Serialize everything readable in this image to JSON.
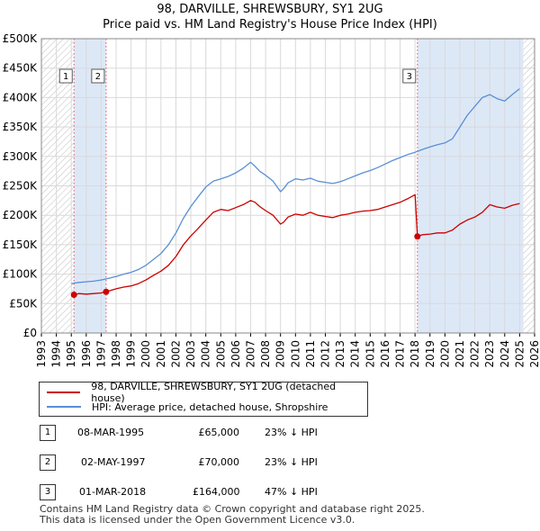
{
  "header": {
    "title": "98, DARVILLE, SHREWSBURY, SY1 2UG",
    "subtitle": "Price paid vs. HM Land Registry's House Price Index (HPI)"
  },
  "colors": {
    "property": "#cc0000",
    "hpi": "#5a8fd6",
    "shade": "#dde8f7",
    "grid": "#d9d9d9",
    "marker_line": "#dd5555"
  },
  "chart_data": {
    "type": "line",
    "title": "98, DARVILLE, SHREWSBURY, SY1 2UG",
    "subtitle": "Price paid vs. HM Land Registry's House Price Index (HPI)",
    "xlabel": "",
    "ylabel": "",
    "xlim": [
      1993,
      2026
    ],
    "ylim": [
      0,
      500000
    ],
    "y_ticks": [
      {
        "value": 0,
        "label": "£0"
      },
      {
        "value": 50000,
        "label": "£50K"
      },
      {
        "value": 100000,
        "label": "£100K"
      },
      {
        "value": 150000,
        "label": "£150K"
      },
      {
        "value": 200000,
        "label": "£200K"
      },
      {
        "value": 250000,
        "label": "£250K"
      },
      {
        "value": 300000,
        "label": "£300K"
      },
      {
        "value": 350000,
        "label": "£350K"
      },
      {
        "value": 400000,
        "label": "£400K"
      },
      {
        "value": 450000,
        "label": "£450K"
      },
      {
        "value": 500000,
        "label": "£500K"
      }
    ],
    "x_ticks": [
      "1993",
      "1994",
      "1995",
      "1996",
      "1997",
      "1998",
      "1999",
      "2000",
      "2001",
      "2002",
      "2003",
      "2004",
      "2005",
      "2006",
      "2007",
      "2008",
      "2009",
      "2010",
      "2011",
      "2012",
      "2013",
      "2014",
      "2015",
      "2016",
      "2017",
      "2018",
      "2019",
      "2020",
      "2021",
      "2022",
      "2023",
      "2024",
      "2025",
      "2026"
    ],
    "grid": true,
    "hatched_ranges": [
      [
        1993,
        1995.18
      ],
      [
        2025.25,
        2026
      ]
    ],
    "shaded_ranges": [
      [
        1995.18,
        1997.33
      ],
      [
        2018.16,
        2025.25
      ]
    ],
    "series": [
      {
        "name": "98, DARVILLE, SHREWSBURY, SY1 2UG (detached house)",
        "color": "#cc0000",
        "x": [
          1995.18,
          1995.5,
          1996,
          1996.5,
          1997.0,
          1997.33,
          1997.6,
          1998,
          1998.5,
          1999,
          1999.5,
          2000,
          2000.5,
          2001,
          2001.5,
          2002,
          2002.5,
          2003,
          2003.5,
          2004,
          2004.5,
          2005,
          2005.5,
          2006,
          2006.5,
          2007,
          2007.3,
          2007.6,
          2008,
          2008.5,
          2009,
          2009.2,
          2009.5,
          2010,
          2010.5,
          2011,
          2011.5,
          2012,
          2012.5,
          2013,
          2013.5,
          2014,
          2014.5,
          2015,
          2015.5,
          2016,
          2016.5,
          2017,
          2017.5,
          2018.0,
          2018.16,
          2018.5,
          2019,
          2019.5,
          2020,
          2020.5,
          2021,
          2021.5,
          2022,
          2022.5,
          2023,
          2023.5,
          2024,
          2024.5,
          2025.0
        ],
        "values": [
          65000,
          67000,
          66000,
          67000,
          68000,
          70000,
          72000,
          75000,
          78000,
          80000,
          84000,
          90000,
          98000,
          105000,
          115000,
          130000,
          150000,
          165000,
          178000,
          192000,
          205000,
          210000,
          208000,
          213000,
          218000,
          225000,
          222000,
          215000,
          208000,
          200000,
          185000,
          188000,
          197000,
          202000,
          200000,
          205000,
          200000,
          198000,
          196000,
          200000,
          202000,
          205000,
          207000,
          208000,
          210000,
          214000,
          218000,
          222000,
          228000,
          235000,
          164000,
          167000,
          168000,
          170000,
          170000,
          175000,
          185000,
          192000,
          197000,
          205000,
          218000,
          214000,
          212000,
          217000,
          220000
        ]
      },
      {
        "name": "HPI: Average price, detached house, Shropshire",
        "color": "#5a8fd6",
        "x": [
          1995.0,
          1995.5,
          1996,
          1996.5,
          1997,
          1997.5,
          1998,
          1998.5,
          1999,
          1999.5,
          2000,
          2000.5,
          2001,
          2001.5,
          2002,
          2002.5,
          2003,
          2003.5,
          2004,
          2004.5,
          2005,
          2005.5,
          2006,
          2006.5,
          2007,
          2007.3,
          2007.6,
          2008,
          2008.5,
          2009,
          2009.2,
          2009.5,
          2010,
          2010.5,
          2011,
          2011.5,
          2012,
          2012.5,
          2013,
          2013.5,
          2014,
          2014.5,
          2015,
          2015.5,
          2016,
          2016.5,
          2017,
          2017.5,
          2018,
          2018.5,
          2019,
          2019.5,
          2020,
          2020.5,
          2021,
          2021.5,
          2022,
          2022.5,
          2023,
          2023.5,
          2024,
          2024.5,
          2025.0
        ],
        "values": [
          84000,
          86000,
          87000,
          88000,
          90000,
          93000,
          96000,
          100000,
          103000,
          108000,
          115000,
          125000,
          135000,
          150000,
          170000,
          195000,
          215000,
          232000,
          248000,
          258000,
          262000,
          266000,
          272000,
          280000,
          290000,
          283000,
          275000,
          268000,
          258000,
          240000,
          245000,
          255000,
          262000,
          260000,
          263000,
          258000,
          256000,
          254000,
          257000,
          262000,
          267000,
          272000,
          276000,
          281000,
          287000,
          293000,
          298000,
          303000,
          307000,
          312000,
          316000,
          320000,
          323000,
          330000,
          350000,
          370000,
          385000,
          400000,
          405000,
          398000,
          394000,
          405000,
          415000
        ]
      }
    ],
    "markers": [
      {
        "label": "1",
        "x": 1995.18,
        "value": 65000
      },
      {
        "label": "2",
        "x": 1997.33,
        "value": 70000
      },
      {
        "label": "3",
        "x": 2018.16,
        "value": 164000
      }
    ]
  },
  "legend": {
    "property_label": "98, DARVILLE, SHREWSBURY, SY1 2UG (detached house)",
    "hpi_label": "HPI: Average price, detached house, Shropshire"
  },
  "sales": [
    {
      "num": "1",
      "date": "08-MAR-1995",
      "price": "£65,000",
      "hpi": "23% ↓ HPI"
    },
    {
      "num": "2",
      "date": "02-MAY-1997",
      "price": "£70,000",
      "hpi": "23% ↓ HPI"
    },
    {
      "num": "3",
      "date": "01-MAR-2018",
      "price": "£164,000",
      "hpi": "47% ↓ HPI"
    }
  ],
  "footer": {
    "line1": "Contains HM Land Registry data © Crown copyright and database right 2025.",
    "line2": "This data is licensed under the Open Government Licence v3.0."
  }
}
